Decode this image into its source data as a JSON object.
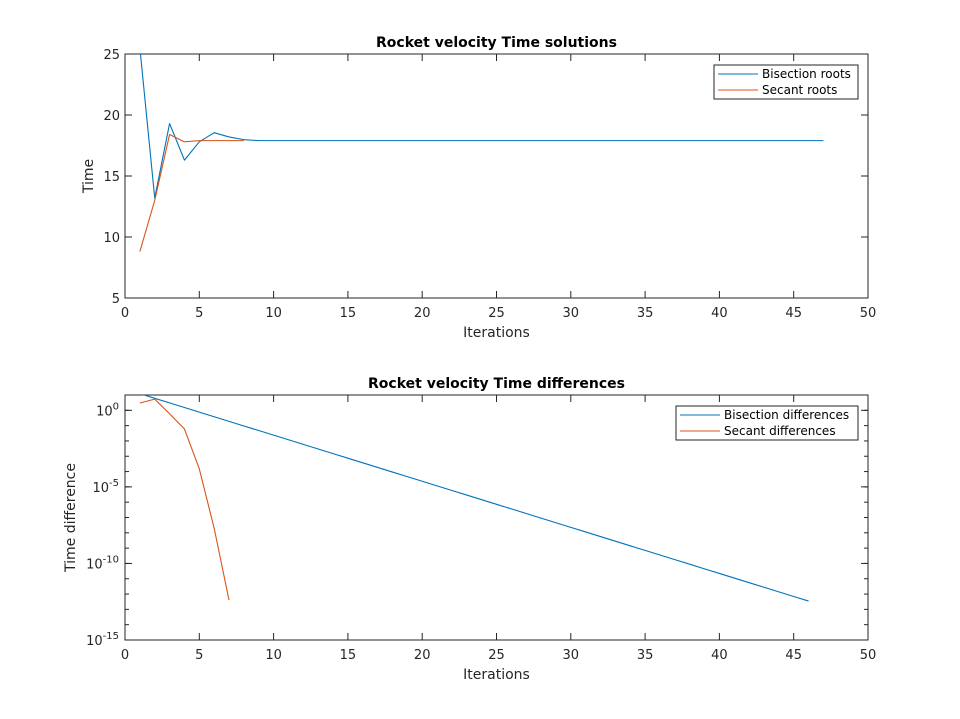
{
  "chart_data": [
    {
      "type": "line",
      "title": "Rocket velocity Time solutions",
      "xlabel": "Iterations",
      "ylabel": "Time",
      "xlim": [
        0,
        50
      ],
      "ylim": [
        5,
        25
      ],
      "xticks": [
        "0",
        "5",
        "10",
        "15",
        "20",
        "25",
        "30",
        "35",
        "40",
        "45",
        "50"
      ],
      "yticks": [
        "5",
        "10",
        "15",
        "20",
        "25"
      ],
      "legend_position": "top-right",
      "series": [
        {
          "name": "Bisection roots",
          "color": "#0072BD",
          "x": [
            1,
            2,
            3,
            4,
            5,
            6,
            7,
            8,
            9,
            10,
            11,
            12,
            13,
            14,
            15,
            16,
            17,
            18,
            19,
            20,
            21,
            22,
            23,
            24,
            25,
            26,
            27,
            28,
            29,
            30,
            31,
            32,
            33,
            34,
            35,
            36,
            37,
            38,
            39,
            40,
            41,
            42,
            43,
            44,
            45,
            46,
            47
          ],
          "y": [
            25.5,
            13.2,
            19.3,
            16.3,
            17.8,
            18.55,
            18.2,
            17.98,
            17.9,
            17.9,
            17.9,
            17.9,
            17.9,
            17.9,
            17.9,
            17.9,
            17.9,
            17.9,
            17.9,
            17.9,
            17.9,
            17.9,
            17.9,
            17.9,
            17.9,
            17.9,
            17.9,
            17.9,
            17.9,
            17.9,
            17.9,
            17.9,
            17.9,
            17.9,
            17.9,
            17.9,
            17.9,
            17.9,
            17.9,
            17.9,
            17.9,
            17.9,
            17.9,
            17.9,
            17.9,
            17.9,
            17.9
          ]
        },
        {
          "name": "Secant roots",
          "color": "#D95319",
          "x": [
            1,
            2,
            3,
            4,
            5,
            6,
            7,
            8
          ],
          "y": [
            8.8,
            13.0,
            18.4,
            17.8,
            17.9,
            17.9,
            17.9,
            17.9
          ]
        }
      ]
    },
    {
      "type": "line",
      "title": "Rocket velocity Time differences",
      "xlabel": "Iterations",
      "ylabel": "Time difference",
      "xlim": [
        0,
        50
      ],
      "yscale": "log",
      "ylim": [
        1e-15,
        10
      ],
      "xticks": [
        "0",
        "5",
        "10",
        "15",
        "20",
        "25",
        "30",
        "35",
        "40",
        "45",
        "50"
      ],
      "yticks": [
        {
          "base": "10",
          "exp": "0"
        },
        {
          "base": "10",
          "exp": "-5"
        },
        {
          "base": "10",
          "exp": "-10"
        },
        {
          "base": "10",
          "exp": "-15"
        }
      ],
      "legend_position": "top-right",
      "series": [
        {
          "name": "Bisection differences",
          "color": "#0072BD",
          "x": [
            1,
            2,
            3,
            4,
            5,
            6,
            7,
            8,
            9,
            10,
            11,
            12,
            13,
            14,
            15,
            16,
            17,
            18,
            19,
            20,
            21,
            22,
            23,
            24,
            25,
            26,
            27,
            28,
            29,
            30,
            31,
            32,
            33,
            34,
            35,
            36,
            37,
            38,
            39,
            40,
            41,
            42,
            43,
            44,
            45,
            46
          ],
          "y": [
            12.3,
            6.1,
            3.05,
            1.53,
            0.76,
            0.38,
            0.19,
            0.095,
            0.048,
            0.024,
            0.0119,
            0.00596,
            0.00298,
            0.00149,
            0.000745,
            0.000373,
            0.000186,
            9.3e-05,
            4.66e-05,
            2.33e-05,
            1.16e-05,
            5.82e-06,
            2.91e-06,
            1.46e-06,
            7.28e-07,
            3.64e-07,
            1.82e-07,
            9.1e-08,
            4.55e-08,
            2.27e-08,
            1.14e-08,
            5.68e-09,
            2.84e-09,
            1.42e-09,
            7.1e-10,
            3.55e-10,
            1.78e-10,
            8.9e-11,
            4.44e-11,
            2.22e-11,
            1.11e-11,
            5.55e-12,
            2.78e-12,
            1.39e-12,
            6.9e-13,
            3.5e-13
          ]
        },
        {
          "name": "Secant differences",
          "color": "#D95319",
          "x": [
            1,
            2,
            3,
            4,
            5,
            6,
            7
          ],
          "y": [
            3.0,
            5.4,
            0.6,
            0.06,
            0.00015,
            2e-08,
            4e-13
          ]
        }
      ]
    }
  ]
}
